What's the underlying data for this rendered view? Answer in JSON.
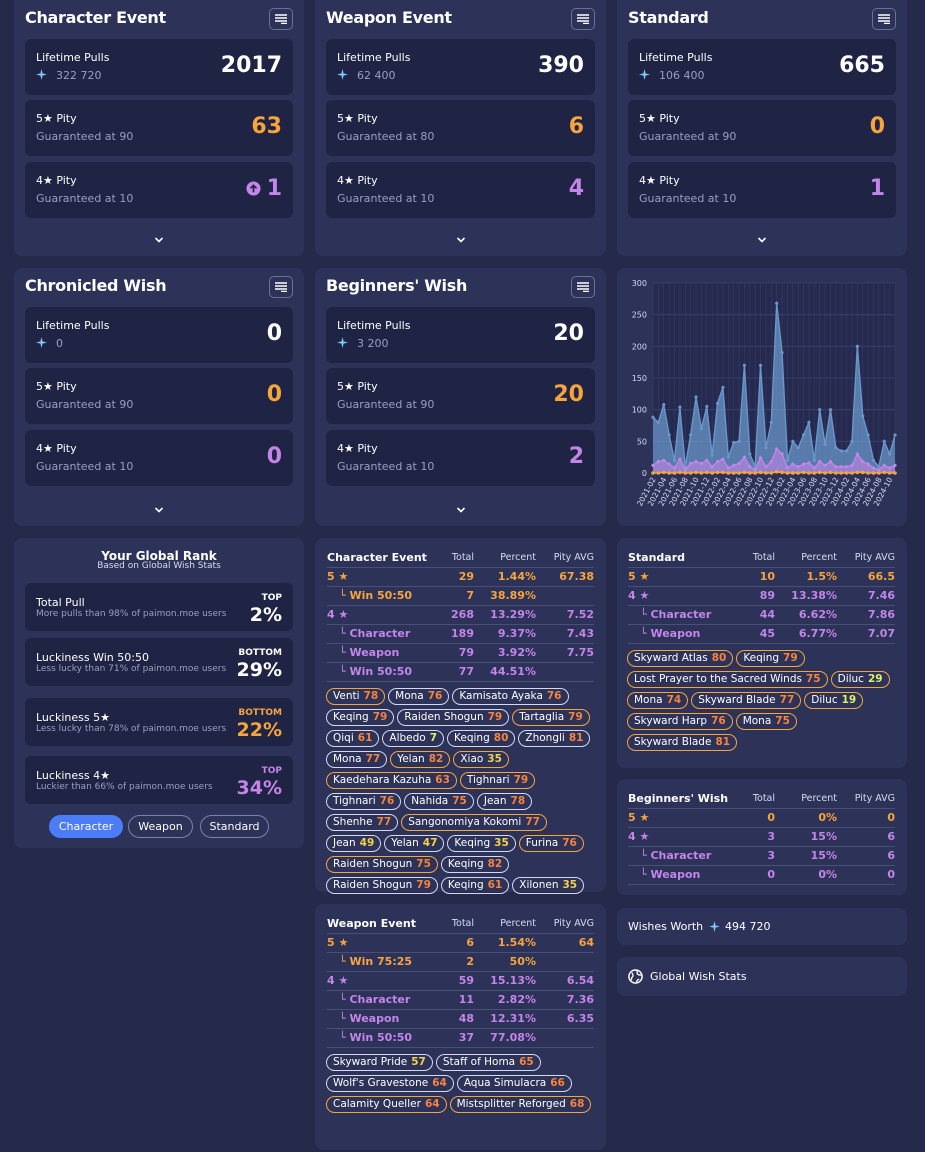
{
  "banners": [
    {
      "title": "Character Event",
      "lifetime_label": "Lifetime Pulls",
      "lifetime_value": "2017",
      "primos": "322 720",
      "pity5_label": "5★ Pity",
      "pity5_sub": "Guaranteed at 90",
      "pity5_value": "63",
      "pity4_label": "4★ Pity",
      "pity4_sub": "Guaranteed at 10",
      "pity4_value": "1"
    },
    {
      "title": "Weapon Event",
      "lifetime_label": "Lifetime Pulls",
      "lifetime_value": "390",
      "primos": "62 400",
      "pity5_label": "5★ Pity",
      "pity5_sub": "Guaranteed at 80",
      "pity5_value": "6",
      "pity4_label": "4★ Pity",
      "pity4_sub": "Guaranteed at 10",
      "pity4_value": "4"
    },
    {
      "title": "Standard",
      "lifetime_label": "Lifetime Pulls",
      "lifetime_value": "665",
      "primos": "106 400",
      "pity5_label": "5★ Pity",
      "pity5_sub": "Guaranteed at 90",
      "pity5_value": "0",
      "pity4_label": "4★ Pity",
      "pity4_sub": "Guaranteed at 10",
      "pity4_value": "1"
    },
    {
      "title": "Chronicled Wish",
      "lifetime_label": "Lifetime Pulls",
      "lifetime_value": "0",
      "primos": "0",
      "pity5_label": "5★ Pity",
      "pity5_sub": "Guaranteed at 90",
      "pity5_value": "0",
      "pity4_label": "4★ Pity",
      "pity4_sub": "Guaranteed at 10",
      "pity4_value": "0"
    },
    {
      "title": "Beginners' Wish",
      "lifetime_label": "Lifetime Pulls",
      "lifetime_value": "20",
      "primos": "3 200",
      "pity5_label": "5★ Pity",
      "pity5_sub": "Guaranteed at 90",
      "pity5_value": "20",
      "pity4_label": "4★ Pity",
      "pity4_sub": "Guaranteed at 10",
      "pity4_value": "2"
    }
  ],
  "chart_data": {
    "type": "area",
    "x": [
      "2021-02",
      "2021-03",
      "2021-04",
      "2021-05",
      "2021-06",
      "2021-07",
      "2021-08",
      "2021-09",
      "2021-10",
      "2021-11",
      "2021-12",
      "2022-01",
      "2022-02",
      "2022-03",
      "2022-04",
      "2022-05",
      "2022-06",
      "2022-07",
      "2022-08",
      "2022-09",
      "2022-10",
      "2022-11",
      "2022-12",
      "2023-01",
      "2023-02",
      "2023-03",
      "2023-04",
      "2023-05",
      "2023-06",
      "2023-07",
      "2023-08",
      "2023-09",
      "2023-10",
      "2023-11",
      "2023-12",
      "2024-01",
      "2024-02",
      "2024-03",
      "2024-04",
      "2024-05",
      "2024-06",
      "2024-07",
      "2024-08",
      "2024-09",
      "2024-10",
      "2024-11"
    ],
    "x_tick_labels": [
      "2021-02",
      "2021-04",
      "2021-06",
      "2021-08",
      "2021-10",
      "2021-12",
      "2022-02",
      "2022-04",
      "2022-06",
      "2022-08",
      "2022-10",
      "2022-12",
      "2023-02",
      "2023-04",
      "2023-06",
      "2023-08",
      "2023-10",
      "2023-12",
      "2024-02",
      "2024-04",
      "2024-06",
      "2024-08",
      "2024-10"
    ],
    "series": [
      {
        "values": [
          88,
          80,
          108,
          60,
          20,
          104,
          10,
          60,
          120,
          70,
          105,
          28,
          110,
          135,
          25,
          48,
          50,
          170,
          30,
          10,
          170,
          40,
          80,
          268,
          190,
          20,
          50,
          40,
          60,
          80,
          20,
          100,
          45,
          100,
          40,
          35,
          35,
          50,
          200,
          90,
          60,
          20,
          10,
          50,
          30,
          60
        ],
        "color": "#6a97c9"
      },
      {
        "values": [
          12,
          18,
          20,
          14,
          8,
          22,
          5,
          15,
          18,
          15,
          20,
          10,
          18,
          22,
          8,
          12,
          15,
          25,
          10,
          5,
          24,
          10,
          18,
          38,
          30,
          8,
          14,
          10,
          14,
          16,
          8,
          18,
          12,
          18,
          10,
          10,
          10,
          12,
          30,
          18,
          14,
          8,
          5,
          12,
          8,
          12
        ],
        "color": "#c385e8"
      },
      {
        "values": [
          0,
          0,
          1,
          0,
          0,
          1,
          0,
          0,
          1,
          0,
          1,
          0,
          1,
          1,
          0,
          0,
          0,
          1,
          0,
          0,
          1,
          0,
          0,
          2,
          1,
          0,
          0,
          0,
          1,
          0,
          0,
          1,
          0,
          1,
          0,
          0,
          0,
          0,
          1,
          1,
          0,
          0,
          0,
          1,
          0,
          0
        ],
        "color": "#f6a53c"
      }
    ],
    "ylim": [
      0,
      300
    ],
    "yticks": [
      0,
      50,
      100,
      150,
      200,
      250,
      300
    ]
  },
  "rank": {
    "title": "Your Global Rank",
    "subtitle": "Based on Global Wish Stats",
    "rows": [
      {
        "label": "Total Pull",
        "sub": "More pulls than 98% of paimon.moe users",
        "tag": "TOP",
        "value": "2%",
        "color": "#ffffff"
      },
      {
        "label": "Luckiness Win 50:50",
        "sub": "Less lucky than 71% of paimon.moe users",
        "tag": "BOTTOM",
        "value": "29%",
        "color": "#ffffff"
      },
      {
        "label": "Luckiness 5★",
        "sub": "Less lucky than 78% of paimon.moe users",
        "tag": "BOTTOM",
        "value": "22%",
        "color": "#f6a53c"
      },
      {
        "label": "Luckiness 4★",
        "sub": "Luckier than 66% of paimon.moe users",
        "tag": "TOP",
        "value": "34%",
        "color": "#c385e8"
      }
    ],
    "tabs": [
      "Character",
      "Weapon",
      "Standard"
    ]
  },
  "table_headers": {
    "total": "Total",
    "percent": "Percent",
    "pity": "Pity AVG"
  },
  "char_table": {
    "title": "Character Event",
    "rows": [
      {
        "label": "5 ★",
        "total": "29",
        "percent": "1.44%",
        "pity": "67.38",
        "cls": "gold"
      },
      {
        "label": "└ Win 50:50",
        "total": "7",
        "percent": "38.89%",
        "pity": "",
        "cls": "gold"
      },
      {
        "label": "4 ★",
        "total": "268",
        "percent": "13.29%",
        "pity": "7.52",
        "cls": "purple"
      },
      {
        "label": "└ Character",
        "total": "189",
        "percent": "9.37%",
        "pity": "7.43",
        "cls": "purple"
      },
      {
        "label": "└ Weapon",
        "total": "79",
        "percent": "3.92%",
        "pity": "7.75",
        "cls": "purple"
      },
      {
        "label": "└ Win 50:50",
        "total": "77",
        "percent": "44.51%",
        "pity": "",
        "cls": "purple"
      }
    ],
    "chips": [
      {
        "name": "Venti",
        "pity": "78",
        "rarity": "five"
      },
      {
        "name": "Mona",
        "pity": "76",
        "rarity": "std"
      },
      {
        "name": "Kamisato Ayaka",
        "pity": "76",
        "rarity": "std"
      },
      {
        "name": "Keqing",
        "pity": "79",
        "rarity": "std"
      },
      {
        "name": "Raiden Shogun",
        "pity": "79",
        "rarity": "std"
      },
      {
        "name": "Tartaglia",
        "pity": "79",
        "rarity": "five"
      },
      {
        "name": "Qiqi",
        "pity": "61",
        "rarity": "std"
      },
      {
        "name": "Albedo",
        "pity": "7",
        "rarity": "std"
      },
      {
        "name": "Keqing",
        "pity": "80",
        "rarity": "std"
      },
      {
        "name": "Zhongli",
        "pity": "81",
        "rarity": "std"
      },
      {
        "name": "Mona",
        "pity": "77",
        "rarity": "std"
      },
      {
        "name": "Yelan",
        "pity": "82",
        "rarity": "five"
      },
      {
        "name": "Xiao",
        "pity": "35",
        "rarity": "five"
      },
      {
        "name": "Kaedehara Kazuha",
        "pity": "63",
        "rarity": "five"
      },
      {
        "name": "Tighnari",
        "pity": "79",
        "rarity": "five"
      },
      {
        "name": "Tighnari",
        "pity": "76",
        "rarity": "std"
      },
      {
        "name": "Nahida",
        "pity": "75",
        "rarity": "std"
      },
      {
        "name": "Jean",
        "pity": "78",
        "rarity": "std"
      },
      {
        "name": "Shenhe",
        "pity": "77",
        "rarity": "std"
      },
      {
        "name": "Sangonomiya Kokomi",
        "pity": "77",
        "rarity": "five"
      },
      {
        "name": "Jean",
        "pity": "49",
        "rarity": "std"
      },
      {
        "name": "Yelan",
        "pity": "47",
        "rarity": "std"
      },
      {
        "name": "Keqing",
        "pity": "35",
        "rarity": "std"
      },
      {
        "name": "Furina",
        "pity": "76",
        "rarity": "five"
      },
      {
        "name": "Raiden Shogun",
        "pity": "75",
        "rarity": "five"
      },
      {
        "name": "Keqing",
        "pity": "82",
        "rarity": "std"
      },
      {
        "name": "Raiden Shogun",
        "pity": "79",
        "rarity": "std"
      },
      {
        "name": "Keqing",
        "pity": "61",
        "rarity": "std"
      },
      {
        "name": "Xilonen",
        "pity": "35",
        "rarity": "std"
      }
    ]
  },
  "weapon_table": {
    "title": "Weapon Event",
    "rows": [
      {
        "label": "5 ★",
        "total": "6",
        "percent": "1.54%",
        "pity": "64",
        "cls": "gold"
      },
      {
        "label": "└ Win 75:25",
        "total": "2",
        "percent": "50%",
        "pity": "",
        "cls": "gold"
      },
      {
        "label": "4 ★",
        "total": "59",
        "percent": "15.13%",
        "pity": "6.54",
        "cls": "purple"
      },
      {
        "label": "└ Character",
        "total": "11",
        "percent": "2.82%",
        "pity": "7.36",
        "cls": "purple"
      },
      {
        "label": "└ Weapon",
        "total": "48",
        "percent": "12.31%",
        "pity": "6.35",
        "cls": "purple"
      },
      {
        "label": "└ Win 50:50",
        "total": "37",
        "percent": "77.08%",
        "pity": "",
        "cls": "purple"
      }
    ],
    "chips": [
      {
        "name": "Skyward Pride",
        "pity": "57",
        "rarity": "std"
      },
      {
        "name": "Staff of Homa",
        "pity": "65",
        "rarity": "std"
      },
      {
        "name": "Wolf's Gravestone",
        "pity": "64",
        "rarity": "std"
      },
      {
        "name": "Aqua Simulacra",
        "pity": "66",
        "rarity": "std"
      },
      {
        "name": "Calamity Queller",
        "pity": "64",
        "rarity": "five"
      },
      {
        "name": "Mistsplitter Reforged",
        "pity": "68",
        "rarity": "five"
      }
    ]
  },
  "standard_table": {
    "title": "Standard",
    "rows": [
      {
        "label": "5 ★",
        "total": "10",
        "percent": "1.5%",
        "pity": "66.5",
        "cls": "gold"
      },
      {
        "label": "4 ★",
        "total": "89",
        "percent": "13.38%",
        "pity": "7.46",
        "cls": "purple"
      },
      {
        "label": "└ Character",
        "total": "44",
        "percent": "6.62%",
        "pity": "7.86",
        "cls": "purple"
      },
      {
        "label": "└ Weapon",
        "total": "45",
        "percent": "6.77%",
        "pity": "7.07",
        "cls": "purple"
      }
    ],
    "chips": [
      {
        "name": "Skyward Atlas",
        "pity": "80",
        "rarity": "five"
      },
      {
        "name": "Keqing",
        "pity": "79",
        "rarity": "five"
      },
      {
        "name": "Lost Prayer to the Sacred Winds",
        "pity": "75",
        "rarity": "five"
      },
      {
        "name": "Diluc",
        "pity": "29",
        "rarity": "five"
      },
      {
        "name": "Mona",
        "pity": "74",
        "rarity": "five"
      },
      {
        "name": "Skyward Blade",
        "pity": "77",
        "rarity": "five"
      },
      {
        "name": "Diluc",
        "pity": "19",
        "rarity": "five"
      },
      {
        "name": "Skyward Harp",
        "pity": "76",
        "rarity": "five"
      },
      {
        "name": "Mona",
        "pity": "75",
        "rarity": "five"
      },
      {
        "name": "Skyward Blade",
        "pity": "81",
        "rarity": "five"
      }
    ]
  },
  "beginner_table": {
    "title": "Beginners' Wish",
    "rows": [
      {
        "label": "5 ★",
        "total": "0",
        "percent": "0%",
        "pity": "0",
        "cls": "gold"
      },
      {
        "label": "4 ★",
        "total": "3",
        "percent": "15%",
        "pity": "6",
        "cls": "purple"
      },
      {
        "label": "└ Character",
        "total": "3",
        "percent": "15%",
        "pity": "6",
        "cls": "purple"
      },
      {
        "label": "└ Weapon",
        "total": "0",
        "percent": "0%",
        "pity": "0",
        "cls": "purple"
      }
    ]
  },
  "worth": {
    "label": "Wishes Worth",
    "value": "494 720"
  },
  "global_stats": {
    "label": "Global Wish Stats"
  },
  "icons": {
    "menu": "menu-list-icon",
    "primogem": "primogem-icon",
    "chevron": "chevron-down-icon",
    "globe": "globe-icon",
    "arrow": "arrow-up-circle-icon"
  },
  "colors": {
    "five_star": "#f6a53c",
    "four_star": "#c385e8",
    "accent": "#4c7cf7",
    "chart_area": "#6a97c9",
    "low_pity": "#d9f26b"
  }
}
